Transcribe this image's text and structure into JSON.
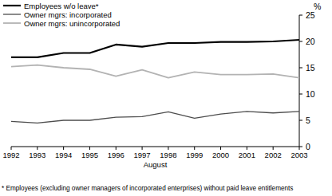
{
  "chart_data": {
    "type": "line",
    "x_label": "August",
    "y_label": "%",
    "annotations": [
      "* Employees (excluding owner managers of incorporated enterprises) without paid leave entitlements"
    ],
    "x": [
      1992,
      1993,
      1994,
      1995,
      1996,
      1997,
      1998,
      1999,
      2000,
      2001,
      2002,
      2003
    ],
    "xlim": [
      1992,
      2003
    ],
    "xticks": [
      1992,
      1993,
      1994,
      1995,
      1996,
      1997,
      1998,
      1999,
      2000,
      2001,
      2002,
      2003
    ],
    "ylim": [
      0,
      25
    ],
    "yticks": [
      0,
      5,
      10,
      15,
      20,
      25
    ],
    "grid": false,
    "legend": "top-left",
    "series": [
      {
        "name": "Employees w/o leave*",
        "color": "#000000",
        "values": [
          17.0,
          17.0,
          17.8,
          17.8,
          19.4,
          19.0,
          19.7,
          19.7,
          19.9,
          19.9,
          20.0,
          20.3
        ]
      },
      {
        "name": "Owner mgrs: incorporated",
        "color": "#4d4d4d",
        "values": [
          4.8,
          4.5,
          5.0,
          5.0,
          5.6,
          5.7,
          6.6,
          5.4,
          6.2,
          6.7,
          6.4,
          6.7
        ]
      },
      {
        "name": "Owner mgrs: unincorporated",
        "color": "#b3b3b3",
        "values": [
          15.2,
          15.5,
          15.0,
          14.7,
          13.4,
          14.6,
          13.1,
          14.2,
          13.7,
          13.7,
          13.8,
          13.1
        ]
      }
    ]
  }
}
